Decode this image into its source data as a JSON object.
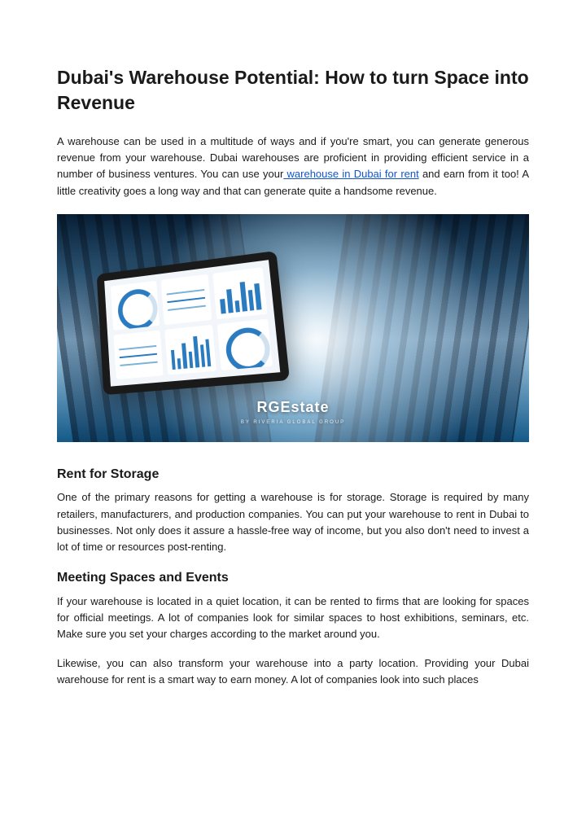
{
  "title": "Dubai's Warehouse Potential: How to turn Space into Revenue",
  "intro": {
    "part1": "A warehouse can be used in a multitude of ways and if you're smart, you can generate generous revenue from your warehouse. Dubai warehouses are proficient in providing efficient service in a number of business ventures. You can use your",
    "link": " warehouse in Dubai for rent",
    "part2": " and earn from it too! A little creativity goes a long way and that can generate quite a handsome revenue."
  },
  "image": {
    "brand": "RGEstate",
    "tagline": "BY RIVERIA GLOBAL GROUP",
    "bars": [
      40,
      65,
      30,
      80,
      55,
      70
    ],
    "bars2": [
      55,
      30,
      70,
      45,
      85,
      60,
      75
    ]
  },
  "sections": [
    {
      "heading": "Rent for Storage",
      "body": "One of the primary reasons for getting a warehouse is for storage. Storage is required by many retailers, manufacturers, and production companies. You can put your warehouse to rent in Dubai to businesses. Not only does it assure a hassle-free way of income, but you also don't need to invest a lot of time or resources post-renting."
    },
    {
      "heading": "Meeting Spaces and Events",
      "body": "If your warehouse is located in a quiet location, it can be rented to firms that are looking for spaces for official meetings. A lot of companies look for similar spaces to host exhibitions, seminars, etc. Make sure you set your charges according to the market around you."
    }
  ],
  "trailing": "Likewise, you can also transform your warehouse into a party location. Providing your Dubai warehouse for rent is a smart way to earn money. A lot of companies look into such places"
}
